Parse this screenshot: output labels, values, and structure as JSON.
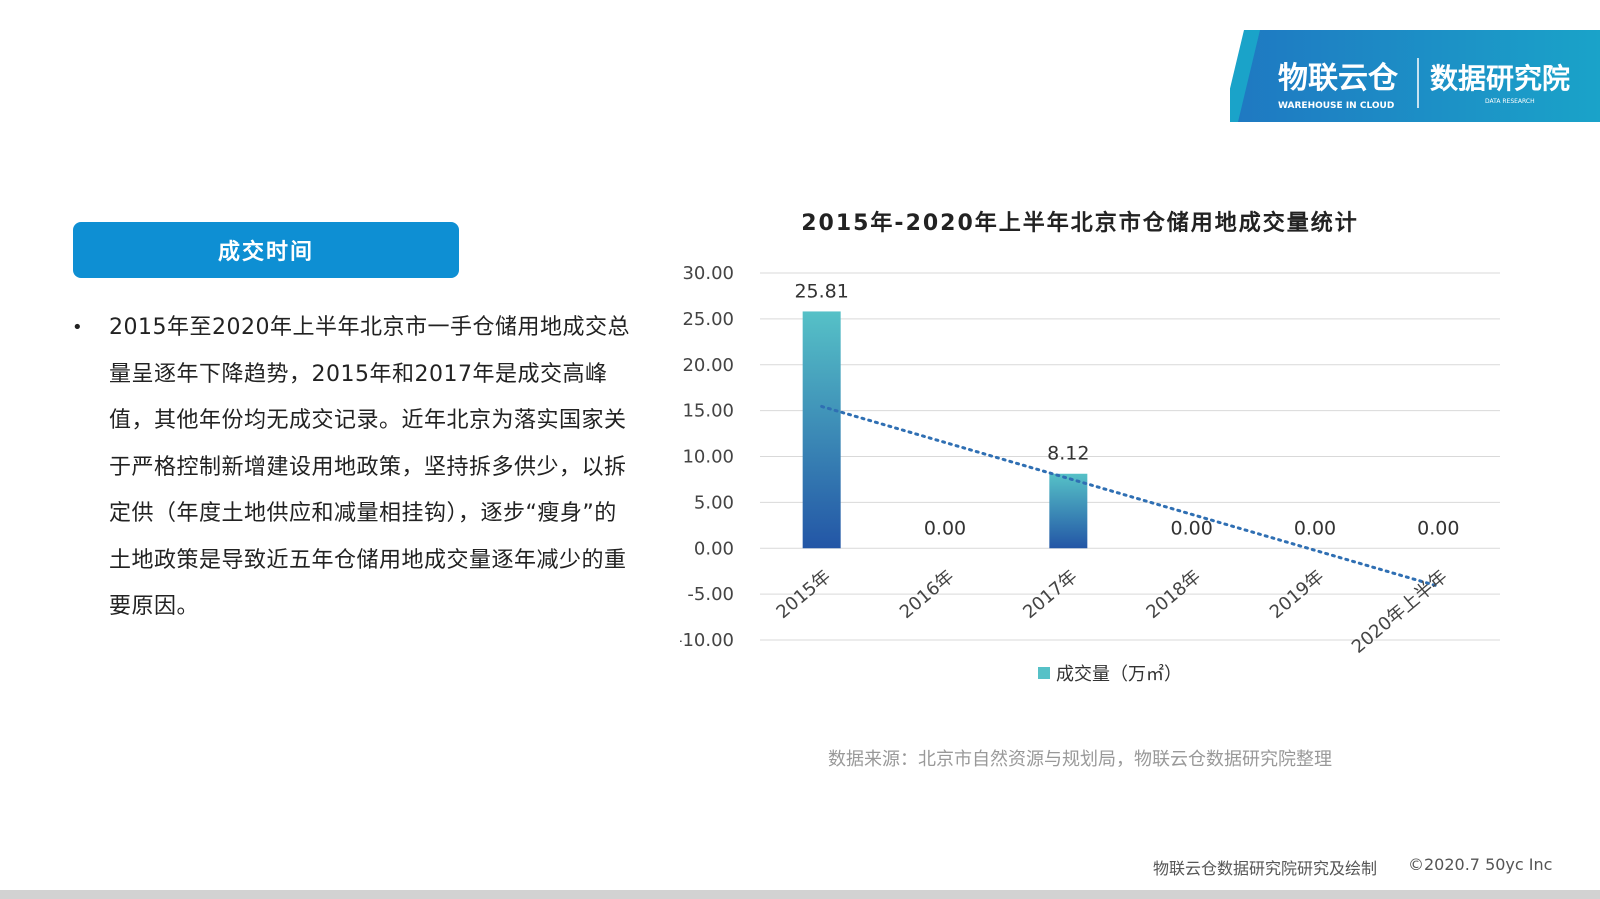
{
  "logo": {
    "brand_cn": "物联云仓",
    "brand_en": "WAREHOUSE IN CLOUD",
    "division_cn": "数据研究院",
    "division_en": "DATA RESEARCH"
  },
  "section_label": "成交时间",
  "bullet": "•",
  "paragraph": "2015年至2020年上半年北京市一手仓储用地成交总量呈逐年下降趋势，2015年和2017年是成交高峰值，其他年份均无成交记录。近年北京为落实国家关于严格控制新增建设用地政策，坚持拆多供少，以拆定供（年度土地供应和减量相挂钩），逐步“瘦身”的土地政策是导致近五年仓储用地成交量逐年减少的重要原因。",
  "chart_data": {
    "type": "bar",
    "title": "2015年-2020年上半年北京市仓储用地成交量统计",
    "categories": [
      "2015年",
      "2016年",
      "2017年",
      "2018年",
      "2019年",
      "2020年上半年"
    ],
    "series": [
      {
        "name": "成交量（万㎡）",
        "values": [
          25.81,
          0,
          8.12,
          0,
          0,
          0
        ]
      }
    ],
    "data_labels": [
      "25.81",
      "0.00",
      "8.12",
      "0.00",
      "0.00",
      "0.00"
    ],
    "y_ticks": [
      "30.00",
      "25.00",
      "20.00",
      "15.00",
      "10.00",
      "5.00",
      "0.00",
      "-5.00",
      "-10.00"
    ],
    "ylim": [
      -10,
      30
    ],
    "ytick_step": 5,
    "trendline": {
      "type": "linear",
      "style": "dotted",
      "color": "#2f6fb3"
    },
    "grid": true,
    "legend_position": "bottom",
    "bar_color_top": "#56c1c7",
    "bar_color_bottom": "#2356a6",
    "xlabel": "",
    "ylabel": ""
  },
  "source_note": "数据来源：北京市自然资源与规划局，物联云仓数据研究院整理",
  "footer": {
    "left": "物联云仓数据研究院研究及绘制",
    "right": "©2020.7 50yc Inc"
  }
}
